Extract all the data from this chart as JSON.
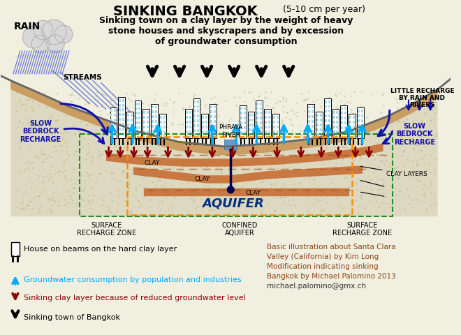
{
  "title_main": "SINKING BANGKOK",
  "title_sub1": " (5-10 cm per year)",
  "title_sub2": "Sinking town on a clay layer by the weight of heavy\nstone houses and skyscrapers and by excession\nof groundwater consumption",
  "bg_color": "#f0efe0",
  "credit_lines": [
    "Basic illustration about Santa Clara",
    "Valley (California) by Kim Long",
    "Modification indicating sinking",
    "Bangkok by Michael Palomino 2013",
    "michael.palomino@gmx.ch"
  ],
  "legend_items": [
    {
      "text": "House on beams on the hard clay layer",
      "color": "#000000"
    },
    {
      "text": "Groundwater consumption by population and industries",
      "color": "#00AAFF"
    },
    {
      "text": "Sinking clay layer because of reduced groundwater level",
      "color": "#8B0000"
    },
    {
      "text": "Sinking town of Bangkok",
      "color": "#000000"
    }
  ],
  "labels": {
    "rain": "RAIN",
    "streams": "STREAMS",
    "slow_bedrock_left": "SLOW\nBEDROCK\nRECHARGE",
    "slow_bedrock_right": "SLOW\nBEDROCK\nRECHARGE",
    "little_recharge": "LITTLE RECHARGE\nBY RAIN AND\nRIVERS",
    "phraya": "PHRAYA\nRIVER",
    "clay1": "CLAY",
    "clay2": "CLAY",
    "clay3": "CLAY",
    "aquifer": "AQUIFER",
    "clay_layers": "CLAY LAYERS",
    "surface_left": "SURFACE\nRECHARGE ZONE",
    "confined": "CONFINED\nAQUIFER",
    "surface_right": "SURFACE\nRECHARGE ZONE"
  },
  "valley": {
    "outline_x": [
      0,
      15,
      50,
      100,
      150,
      200,
      260,
      330,
      400,
      460,
      510,
      570,
      610,
      640,
      660
    ],
    "outline_y": [
      108,
      115,
      130,
      152,
      170,
      188,
      203,
      210,
      205,
      198,
      188,
      165,
      145,
      128,
      112
    ]
  },
  "aquifer_region": {
    "fill_color": "#d8d0b8",
    "dot_color": "#b8a878"
  },
  "clay_color": "#c87840",
  "clay_stripe_color": "#a05020"
}
